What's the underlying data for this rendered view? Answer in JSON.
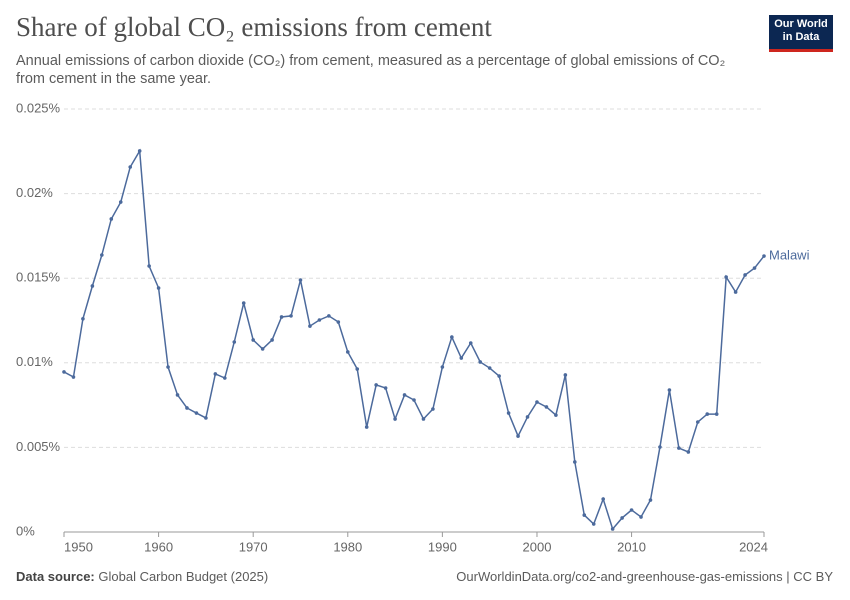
{
  "chart_data": {
    "type": "line",
    "title": "Share of global CO₂ emissions from cement",
    "subtitle": "Annual emissions of carbon dioxide (CO₂) from cement, measured as a percentage of global emissions of CO₂ from cement in the same year.",
    "logo": "Our World in Data",
    "source_label": "Data source:",
    "source": "Global Carbon Budget (2025)",
    "footer_right": "OurWorldinData.org/co2-and-greenhouse-gas-emissions | CC BY",
    "x": [
      1950,
      1951,
      1952,
      1953,
      1954,
      1955,
      1956,
      1957,
      1958,
      1959,
      1960,
      1961,
      1962,
      1963,
      1964,
      1965,
      1966,
      1967,
      1968,
      1969,
      1970,
      1971,
      1972,
      1973,
      1974,
      1975,
      1976,
      1977,
      1978,
      1979,
      1980,
      1981,
      1982,
      1983,
      1984,
      1985,
      1986,
      1987,
      1988,
      1989,
      1990,
      1991,
      1992,
      1993,
      1994,
      1995,
      1996,
      1997,
      1998,
      1999,
      2000,
      2001,
      2002,
      2003,
      2004,
      2005,
      2006,
      2007,
      2008,
      2009,
      2010,
      2011,
      2012,
      2013,
      2014,
      2015,
      2016,
      2017,
      2018,
      2019,
      2020,
      2021,
      2022,
      2023,
      2024
    ],
    "series": [
      {
        "name": "Malawi",
        "color": "#4c6a9c",
        "values": [
          0.00946,
          0.00916,
          0.0126,
          0.01454,
          0.01637,
          0.0185,
          0.0195,
          0.02157,
          0.02252,
          0.01572,
          0.01442,
          0.00975,
          0.0081,
          0.00733,
          0.00703,
          0.00674,
          0.00934,
          0.0091,
          0.01123,
          0.01353,
          0.01135,
          0.01082,
          0.01135,
          0.01271,
          0.01277,
          0.01489,
          0.01217,
          0.01253,
          0.01277,
          0.01241,
          0.01064,
          0.00963,
          0.0062,
          0.00869,
          0.00851,
          0.00668,
          0.0081,
          0.0078,
          0.00668,
          0.00727,
          0.00975,
          0.01152,
          0.01028,
          0.01117,
          0.01005,
          0.00969,
          0.00922,
          0.00703,
          0.00567,
          0.0068,
          0.00768,
          0.00739,
          0.00691,
          0.00928,
          0.00414,
          0.001,
          0.00047,
          0.00195,
          0.00018,
          0.00083,
          0.0013,
          0.00089,
          0.00189,
          0.00502,
          0.00839,
          0.00496,
          0.00473,
          0.0065,
          0.00697,
          0.00697,
          0.01507,
          0.01418,
          0.01519,
          0.0156,
          0.01631
        ]
      }
    ],
    "xlim": [
      1950,
      2024
    ],
    "xticks": [
      1950,
      1960,
      1970,
      1980,
      1990,
      2000,
      2010,
      2024
    ],
    "ylim": [
      0,
      0.025
    ],
    "yticks": [
      {
        "value": 0,
        "label": "0%"
      },
      {
        "value": 0.005,
        "label": "0.005%"
      },
      {
        "value": 0.01,
        "label": "0.01%"
      },
      {
        "value": 0.015,
        "label": "0.015%"
      },
      {
        "value": 0.02,
        "label": "0.02%"
      },
      {
        "value": 0.025,
        "label": "0.025%"
      }
    ],
    "grid": true
  }
}
